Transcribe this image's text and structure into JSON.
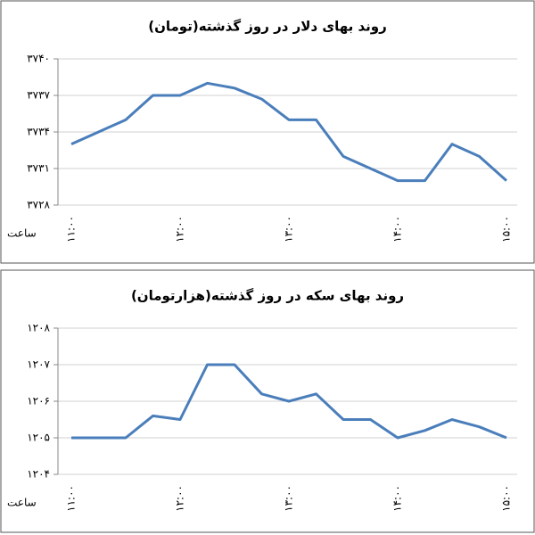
{
  "chart_data": [
    {
      "type": "line",
      "title": "روند بهای دلار در روز گذشته(تومان)",
      "x_label": "ساعت",
      "categories": [
        "۱۱:۰۰",
        null,
        null,
        null,
        "۱۲:۰۰",
        null,
        null,
        null,
        "۱۳:۰۰",
        null,
        null,
        null,
        "۱۴:۰۰",
        null,
        null,
        null,
        "۱۵:۰۰"
      ],
      "series": [
        {
          "name": "دلار",
          "color": "#4a7ebb",
          "values": [
            3733,
            3734,
            3735,
            3737,
            3737,
            3738,
            3737.6,
            3736.7,
            3735,
            3735,
            3732,
            3731,
            3730,
            3730,
            3733,
            3732,
            3730
          ]
        }
      ],
      "ylim": [
        3728,
        3740
      ],
      "yticks": [
        {
          "value": 3728,
          "label": "۳۷۲۸"
        },
        {
          "value": 3731,
          "label": "۳۷۳۱"
        },
        {
          "value": 3734,
          "label": "۳۷۳۴"
        },
        {
          "value": 3737,
          "label": "۳۷۳۷"
        },
        {
          "value": 3740,
          "label": "۳۷۴۰"
        }
      ],
      "grid": true
    },
    {
      "type": "line",
      "title": "روند بهای سکه در روز گذشته(هزارتومان)",
      "x_label": "ساعت",
      "categories": [
        "۱۱:۰۰",
        null,
        null,
        null,
        "۱۲:۰۰",
        null,
        null,
        null,
        "۱۳:۰۰",
        null,
        null,
        null,
        "۱۴:۰۰",
        null,
        null,
        null,
        "۱۵:۰۰"
      ],
      "series": [
        {
          "name": "سکه",
          "color": "#4a7ebb",
          "values": [
            1205,
            1205,
            1205,
            1205.6,
            1205.5,
            1207,
            1207,
            1206.2,
            1206,
            1206.2,
            1205.5,
            1205.5,
            1205,
            1205.2,
            1205.5,
            1205.3,
            1205
          ]
        }
      ],
      "ylim": [
        1204,
        1208
      ],
      "yticks": [
        {
          "value": 1204,
          "label": "۱۲۰۴"
        },
        {
          "value": 1205,
          "label": "۱۲۰۵"
        },
        {
          "value": 1206,
          "label": "۱۲۰۶"
        },
        {
          "value": 1207,
          "label": "۱۲۰۷"
        },
        {
          "value": 1208,
          "label": "۱۲۰۸"
        }
      ],
      "grid": true
    }
  ]
}
